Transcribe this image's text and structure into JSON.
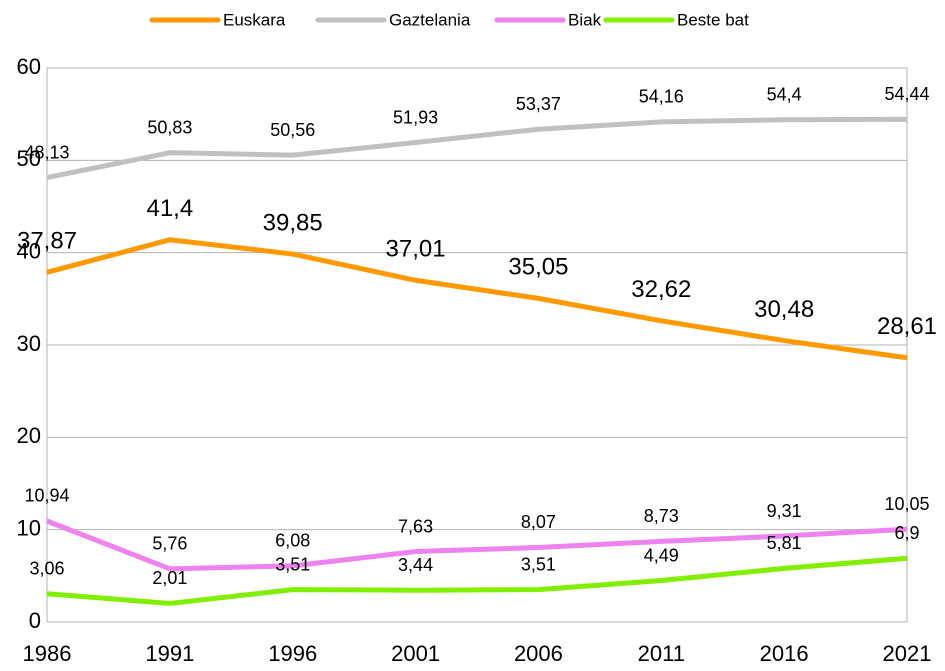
{
  "chart_data": {
    "type": "line",
    "categories": [
      "1986",
      "1991",
      "1996",
      "2001",
      "2006",
      "2011",
      "2016",
      "2021"
    ],
    "series": [
      {
        "name": "Euskara",
        "color": "#ff9900",
        "values": [
          37.87,
          41.4,
          39.85,
          37.01,
          35.05,
          32.62,
          30.48,
          28.61
        ],
        "value_labels": [
          "37,87",
          "41,4",
          "39,85",
          "37,01",
          "35,05",
          "32,62",
          "30,48",
          "28,61"
        ]
      },
      {
        "name": "Gaztelania",
        "color": "#c0c0c0",
        "values": [
          48.13,
          50.83,
          50.56,
          51.93,
          53.37,
          54.16,
          54.4,
          54.44
        ],
        "value_labels": [
          "48,13",
          "50,83",
          "50,56",
          "51,93",
          "53,37",
          "54,16",
          "54,4",
          "54,44"
        ]
      },
      {
        "name": "Biak",
        "color": "#ee82ee",
        "values": [
          10.94,
          5.76,
          6.08,
          7.63,
          8.07,
          8.73,
          9.31,
          10.05
        ],
        "value_labels": [
          "10,94",
          "5,76",
          "6,08",
          "7,63",
          "8,07",
          "8,73",
          "9,31",
          "10,05"
        ]
      },
      {
        "name": "Beste bat",
        "color": "#80f000",
        "values": [
          3.06,
          2.01,
          3.51,
          3.44,
          3.51,
          4.49,
          5.81,
          6.9
        ],
        "value_labels": [
          "3,06",
          "2,01",
          "3,51",
          "3,44",
          "3,51",
          "4,49",
          "5,81",
          "6,9"
        ]
      }
    ],
    "ylim": [
      0,
      60
    ],
    "yticks": [
      0,
      10,
      20,
      30,
      40,
      50,
      60
    ],
    "grid": true,
    "legend": "top"
  }
}
